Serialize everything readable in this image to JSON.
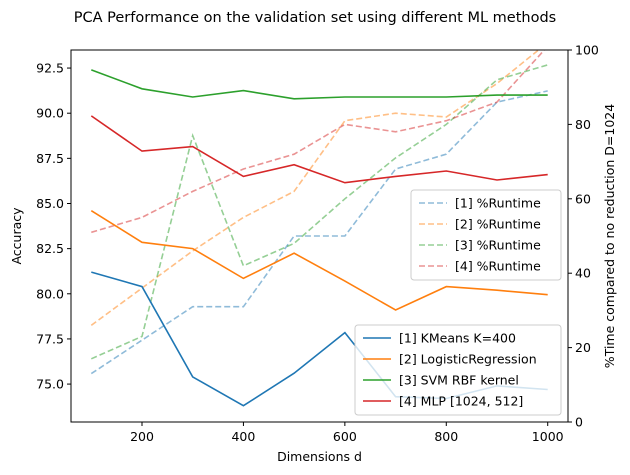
{
  "chart_data": {
    "type": "line",
    "title": "PCA Performance on the validation set using different ML methods",
    "xlabel": "Dimensions d",
    "ylabel": "Accuracy",
    "y2label": "%Time compared to no reduction D=1024",
    "xlim": [
      60,
      1040
    ],
    "ylim": [
      72.9,
      93.5
    ],
    "y2lim": [
      0,
      100
    ],
    "xticks": [
      200,
      400,
      600,
      800,
      1000
    ],
    "yticks": [
      75.0,
      77.5,
      80.0,
      82.5,
      85.0,
      87.5,
      90.0,
      92.5
    ],
    "y2ticks": [
      0,
      20,
      40,
      60,
      80,
      100
    ],
    "grid": false,
    "x": [
      100,
      200,
      300,
      400,
      500,
      600,
      700,
      800,
      900,
      1000
    ],
    "accuracy_series": [
      {
        "name": "[1] KMeans K=400",
        "color": "#1f77b4",
        "values": [
          81.2,
          80.4,
          75.4,
          73.8,
          75.6,
          77.85,
          74.3,
          74.2,
          74.9,
          74.7
        ]
      },
      {
        "name": "[2] LogisticRegression",
        "color": "#ff7f0e",
        "values": [
          84.6,
          82.85,
          82.5,
          80.85,
          82.25,
          80.7,
          79.1,
          80.4,
          80.2,
          79.95
        ]
      },
      {
        "name": "[3] SVM RBF kernel",
        "color": "#2ca02c",
        "values": [
          92.4,
          91.35,
          90.9,
          91.25,
          90.8,
          90.9,
          90.9,
          90.9,
          91.0,
          91.0
        ]
      },
      {
        "name": "[4] MLP [1024, 512]",
        "color": "#d62728",
        "values": [
          89.85,
          87.9,
          88.15,
          86.5,
          87.15,
          86.15,
          86.5,
          86.8,
          86.3,
          86.6
        ]
      }
    ],
    "runtime_series": [
      {
        "name": "[1] %Runtime",
        "color": "#1f77b4",
        "values": [
          13,
          22,
          31,
          31,
          50,
          50,
          68,
          72,
          86,
          89
        ]
      },
      {
        "name": "[2] %Runtime",
        "color": "#ff7f0e",
        "values": [
          26,
          36,
          46,
          55,
          62,
          81,
          83,
          82,
          91,
          102
        ]
      },
      {
        "name": "[3] %Runtime",
        "color": "#2ca02c",
        "values": [
          17,
          23,
          77,
          42,
          48,
          60,
          71,
          80,
          92,
          96
        ]
      },
      {
        "name": "[4] %Runtime",
        "color": "#d62728",
        "values": [
          51,
          55,
          62,
          68,
          72,
          80,
          78,
          81,
          86,
          101
        ]
      }
    ],
    "legend_runtime_position": "center-right",
    "legend_accuracy_position": "lower-right"
  }
}
